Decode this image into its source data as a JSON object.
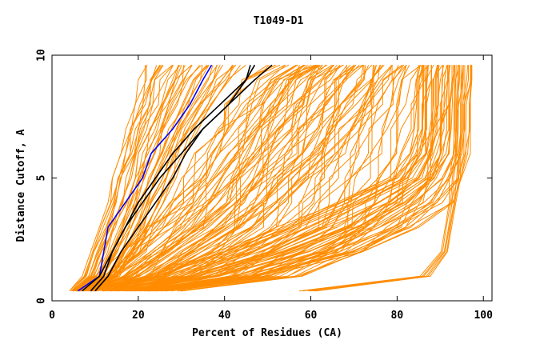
{
  "chart_data": {
    "type": "line",
    "title": "T1049-D1",
    "xlabel": "Percent of Residues (CA)",
    "ylabel": "Distance Cutoff, A",
    "xlim": [
      0,
      102
    ],
    "ylim": [
      0,
      10
    ],
    "x_ticks": [
      0,
      20,
      40,
      60,
      80,
      100
    ],
    "y_ticks": [
      0,
      5,
      10
    ],
    "x_tick_labels": [
      "0",
      "20",
      "40",
      "60",
      "80",
      "100"
    ],
    "y_tick_labels": [
      "0",
      "5",
      "10"
    ],
    "grid": false,
    "y_levels": [
      0.4,
      1,
      2,
      3,
      4,
      5,
      6,
      7,
      8,
      9,
      9.6
    ],
    "colors": {
      "background_models": "#ff8c00",
      "highlight": "#0000ff",
      "reference": "#000000"
    },
    "series": [
      {
        "name": "highlight-model",
        "color": "#0000ff",
        "x": [
          6,
          11,
          12,
          13,
          17,
          21,
          23,
          28,
          32,
          35,
          37
        ]
      },
      {
        "name": "reference-model-1",
        "color": "#000000",
        "x": [
          9,
          12,
          14,
          17,
          20,
          24,
          28,
          33,
          39,
          45,
          47
        ]
      },
      {
        "name": "reference-model-2",
        "color": "#000000",
        "x": [
          10,
          13,
          16,
          20,
          24,
          28,
          31,
          35,
          41,
          47,
          51
        ]
      },
      {
        "name": "reference-model-3",
        "color": "#000000",
        "x": [
          7,
          11,
          14,
          17,
          21,
          25,
          30,
          35,
          41,
          45,
          46
        ]
      }
    ],
    "background_bundles": [
      {
        "name": "steep-bundle",
        "count": 40,
        "x_min": [
          4,
          7,
          9,
          11,
          13,
          14,
          16,
          17,
          19,
          20,
          21
        ],
        "x_max": [
          8,
          16,
          20,
          23,
          26,
          29,
          31,
          34,
          38,
          42,
          45
        ]
      },
      {
        "name": "middle-bundle",
        "count": 30,
        "x_min": [
          6,
          12,
          18,
          24,
          28,
          32,
          36,
          40,
          45,
          50,
          55
        ],
        "x_max": [
          10,
          26,
          38,
          48,
          56,
          62,
          68,
          72,
          76,
          80,
          82
        ]
      },
      {
        "name": "flat-bundle",
        "count": 60,
        "x_min": [
          4,
          10,
          16,
          22,
          26,
          30,
          33,
          36,
          40,
          44,
          50
        ],
        "x_max": [
          30,
          58,
          72,
          82,
          86,
          88,
          90,
          90,
          92,
          92,
          92
        ]
      },
      {
        "name": "saturating-bundle",
        "count": 40,
        "x_min": [
          5,
          22,
          38,
          52,
          66,
          78,
          83,
          84,
          84,
          84,
          85
        ],
        "x_max": [
          25,
          50,
          72,
          86,
          93,
          96,
          97,
          97,
          97,
          98,
          98
        ]
      },
      {
        "name": "outlier-bundle",
        "count": 6,
        "x_min": [
          57,
          85,
          90,
          91,
          92,
          92,
          93,
          93,
          93,
          93,
          93
        ],
        "x_max": [
          62,
          88,
          92,
          93,
          94,
          95,
          95,
          96,
          96,
          96,
          96
        ]
      }
    ]
  }
}
